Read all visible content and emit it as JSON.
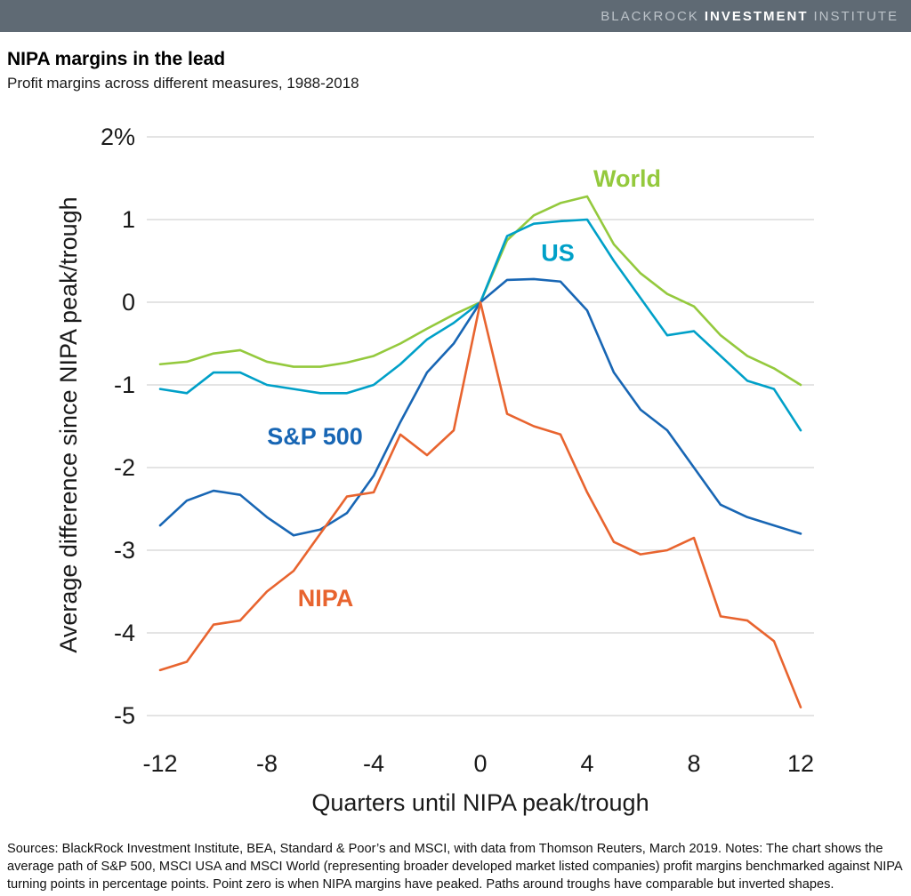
{
  "header": {
    "brand_part1": "BLACKROCK",
    "brand_part2": "INVESTMENT",
    "brand_part3": "INSTITUTE",
    "bg_color": "#5f6a74"
  },
  "title": "NIPA margins in the lead",
  "subtitle": "Profit margins across different measures, 1988-2018",
  "footer": "Sources: BlackRock Investment Institute, BEA, Standard & Poor’s and MSCI, with data from Thomson Reuters, March 2019. Notes: The chart shows the average path of S&P 500, MSCI USA and MSCI World (representing broader developed market listed companies) profit margins benchmarked against NIPA turning points in percentage points. Point zero is when NIPA margins have peaked. Paths around troughs have comparable but inverted shapes.",
  "chart_data": {
    "type": "line",
    "title": "NIPA margins in the lead",
    "xlabel": "Quarters until NIPA peak/trough",
    "ylabel": "Average difference since NIPA peak/trough",
    "xlim": [
      -12.5,
      12.5
    ],
    "ylim": [
      -5.4,
      2.3
    ],
    "grid": true,
    "grid_color": "#c9c9c9",
    "x": [
      -12,
      -11,
      -10,
      -9,
      -8,
      -7,
      -6,
      -5,
      -4,
      -3,
      -2,
      -1,
      0,
      1,
      2,
      3,
      4,
      5,
      6,
      7,
      8,
      9,
      10,
      11,
      12
    ],
    "xticks": [
      -12,
      -8,
      -4,
      0,
      4,
      8,
      12
    ],
    "yticks": [
      {
        "value": 2,
        "label": "2%"
      },
      {
        "value": 1,
        "label": "1"
      },
      {
        "value": 0,
        "label": "0"
      },
      {
        "value": -1,
        "label": "-1"
      },
      {
        "value": -2,
        "label": "-2"
      },
      {
        "value": -3,
        "label": "-3"
      },
      {
        "value": -4,
        "label": "-4"
      },
      {
        "value": -5,
        "label": "-5"
      }
    ],
    "series": [
      {
        "key": "world",
        "name": "World",
        "color": "#94c93d",
        "label_x": 5.5,
        "label_y": 1.4,
        "values": [
          -0.75,
          -0.72,
          -0.62,
          -0.58,
          -0.72,
          -0.78,
          -0.78,
          -0.73,
          -0.65,
          -0.5,
          -0.32,
          -0.15,
          0,
          0.75,
          1.05,
          1.2,
          1.28,
          0.7,
          0.35,
          0.1,
          -0.05,
          -0.4,
          -0.65,
          -0.8,
          -1.0
        ]
      },
      {
        "key": "us",
        "name": "US",
        "color": "#00a0c8",
        "label_x": 2.9,
        "label_y": 0.5,
        "values": [
          -1.05,
          -1.1,
          -0.85,
          -0.85,
          -1.0,
          -1.05,
          -1.1,
          -1.1,
          -1.0,
          -0.75,
          -0.45,
          -0.25,
          0,
          0.8,
          0.95,
          0.98,
          1.0,
          0.5,
          0.05,
          -0.4,
          -0.35,
          -0.65,
          -0.95,
          -1.05,
          -1.55
        ]
      },
      {
        "key": "sp500",
        "name": "S&P 500",
        "color": "#1866b4",
        "label_x": -6.2,
        "label_y": -1.72,
        "values": [
          -2.7,
          -2.4,
          -2.28,
          -2.33,
          -2.6,
          -2.82,
          -2.75,
          -2.55,
          -2.1,
          -1.45,
          -0.85,
          -0.5,
          0,
          0.27,
          0.28,
          0.25,
          -0.1,
          -0.85,
          -1.3,
          -1.55,
          -2.0,
          -2.45,
          -2.6,
          -2.7,
          -2.8
        ]
      },
      {
        "key": "nipa",
        "name": "NIPA",
        "color": "#e8642f",
        "label_x": -5.8,
        "label_y": -3.68,
        "values": [
          -4.45,
          -4.35,
          -3.9,
          -3.85,
          -3.5,
          -3.25,
          -2.8,
          -2.35,
          -2.3,
          -1.6,
          -1.85,
          -1.55,
          0,
          -1.35,
          -1.5,
          -1.6,
          -2.3,
          -2.9,
          -3.05,
          -3.0,
          -2.85,
          -3.8,
          -3.85,
          -4.1,
          -4.9
        ]
      }
    ]
  }
}
